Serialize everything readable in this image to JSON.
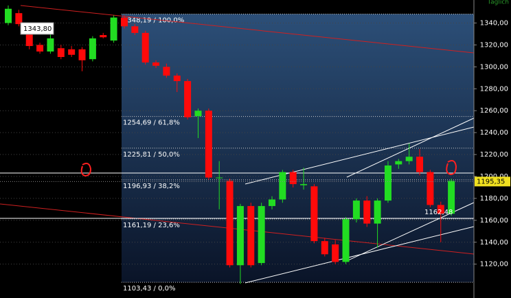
{
  "chart_data": {
    "type": "candlestick",
    "corner_label": "Täglich",
    "open": [
      1340,
      1349,
      1336,
      1320,
      1314,
      1317,
      1316,
      1316,
      1307,
      1329,
      1324,
      1345,
      1337,
      1331,
      1304,
      1300,
      1292,
      1287,
      1255,
      1260,
      1199,
      1196,
      1119,
      1173,
      1121,
      1173,
      1179,
      1204,
      1192,
      1191,
      1141,
      1138,
      1122,
      1161,
      1178,
      1157,
      1178,
      1211,
      1214,
      1218,
      1204,
      1174,
      1166
    ],
    "high": [
      1356,
      1352,
      1340,
      1322,
      1334,
      1320,
      1319,
      1318,
      1328,
      1331,
      1347,
      1347,
      1339,
      1333,
      1306,
      1303,
      1294,
      1289,
      1262,
      1262,
      1214,
      1198,
      1175,
      1176,
      1176,
      1182,
      1206,
      1206,
      1208,
      1193,
      1144,
      1142,
      1163,
      1180,
      1182,
      1180,
      1214,
      1216,
      1230,
      1225,
      1206,
      1177,
      1198
    ],
    "low": [
      1338,
      1337,
      1316,
      1312,
      1312,
      1307,
      1309,
      1296,
      1305,
      1326,
      1322,
      1335,
      1329,
      1302,
      1299,
      1290,
      1277,
      1252,
      1235,
      1197,
      1170,
      1117,
      1102,
      1117,
      1119,
      1170,
      1176,
      1190,
      1188,
      1139,
      1127,
      1120,
      1120,
      1158,
      1154,
      1135,
      1176,
      1207,
      1211,
      1201,
      1172,
      1140,
      1164
    ],
    "close": [
      1353,
      1339,
      1319,
      1314,
      1326,
      1309,
      1311,
      1306,
      1326,
      1327,
      1345,
      1337,
      1331,
      1304,
      1301,
      1292,
      1287,
      1254,
      1260,
      1199,
      1199,
      1119,
      1173,
      1119,
      1173,
      1179,
      1204,
      1193,
      1193,
      1141,
      1129,
      1122,
      1161,
      1178,
      1157,
      1178,
      1210,
      1214,
      1218,
      1204,
      1174,
      1166,
      1196
    ],
    "up_color": "#22dd22",
    "down_color": "#ff0a0a",
    "ylim": [
      1101,
      1361
    ],
    "yticks": [
      {
        "value": 1120,
        "label": "1120,00"
      },
      {
        "value": 1140,
        "label": "1140,00"
      },
      {
        "value": 1160,
        "label": "1160,00"
      },
      {
        "value": 1180,
        "label": "1180,00"
      },
      {
        "value": 1200,
        "label": "1200,00"
      },
      {
        "value": 1220,
        "label": "1220,00"
      },
      {
        "value": 1240,
        "label": "1240,00"
      },
      {
        "value": 1260,
        "label": "1260,00"
      },
      {
        "value": 1280,
        "label": "1280,00"
      },
      {
        "value": 1300,
        "label": "1300,00"
      },
      {
        "value": 1320,
        "label": "1320,00"
      },
      {
        "value": 1340,
        "label": "1340,00"
      }
    ],
    "grid": true,
    "fib_levels": [
      {
        "value": 1348.19,
        "label": "1348,19 / 100,0%"
      },
      {
        "value": 1254.69,
        "label": "1254,69 / 61,8%"
      },
      {
        "value": 1225.81,
        "label": "1225,81 / 50,0%"
      },
      {
        "value": 1196.93,
        "label": "1196,93 / 38,2%"
      },
      {
        "value": 1161.19,
        "label": "1161,19 / 23,6%"
      },
      {
        "value": 1103.43,
        "label": "1103,43 / 0,0%"
      }
    ],
    "last_price": {
      "value": 1195.35,
      "label": "1195,35"
    },
    "annotations": [
      "1343,80",
      "1162,48"
    ]
  }
}
